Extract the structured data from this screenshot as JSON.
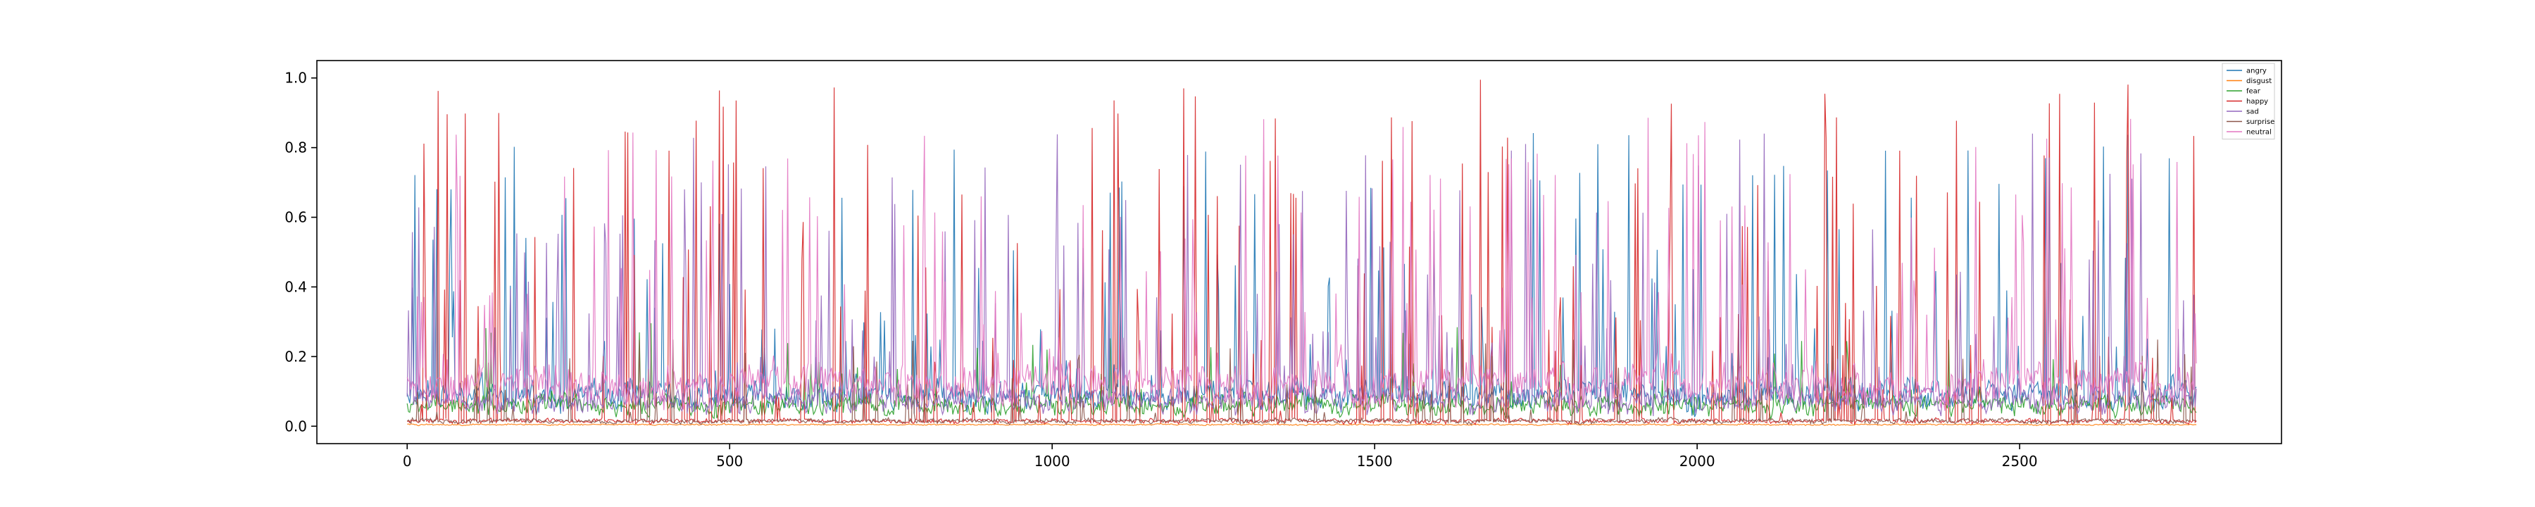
{
  "chart_data": {
    "type": "line",
    "title": "",
    "xlabel": "",
    "ylabel": "",
    "xlim": [
      -140,
      2906
    ],
    "ylim": [
      -0.05,
      1.05
    ],
    "n_points": 2776,
    "x_ticks": [
      0,
      500,
      1000,
      1500,
      2000,
      2500
    ],
    "x_tick_labels": [
      "0",
      "500",
      "1000",
      "1500",
      "2000",
      "2500"
    ],
    "y_ticks": [
      0.0,
      0.2,
      0.4,
      0.6,
      0.8,
      1.0
    ],
    "y_tick_labels": [
      "0.0",
      "0.2",
      "0.4",
      "0.6",
      "0.8",
      "1.0"
    ],
    "grid": false,
    "legend_position": "top-right",
    "series": [
      {
        "name": "angry",
        "color": "#1f77b4",
        "base": 0.06,
        "spike_max": 0.85,
        "spike_rate": 0.045
      },
      {
        "name": "disgust",
        "color": "#ff7f0e",
        "base": 0.003,
        "spike_max": 0.01,
        "spike_rate": 0.0
      },
      {
        "name": "fear",
        "color": "#2ca02c",
        "base": 0.04,
        "spike_max": 0.3,
        "spike_rate": 0.02
      },
      {
        "name": "happy",
        "color": "#d62728",
        "base": 0.01,
        "spike_max": 1.0,
        "spike_rate": 0.05
      },
      {
        "name": "sad",
        "color": "#9467bd",
        "base": 0.05,
        "spike_max": 0.85,
        "spike_rate": 0.05
      },
      {
        "name": "surprise",
        "color": "#8c564b",
        "base": 0.01,
        "spike_max": 0.25,
        "spike_rate": 0.02
      },
      {
        "name": "neutral",
        "color": "#e377c2",
        "base": 0.08,
        "spike_max": 0.9,
        "spike_rate": 0.06
      }
    ]
  }
}
